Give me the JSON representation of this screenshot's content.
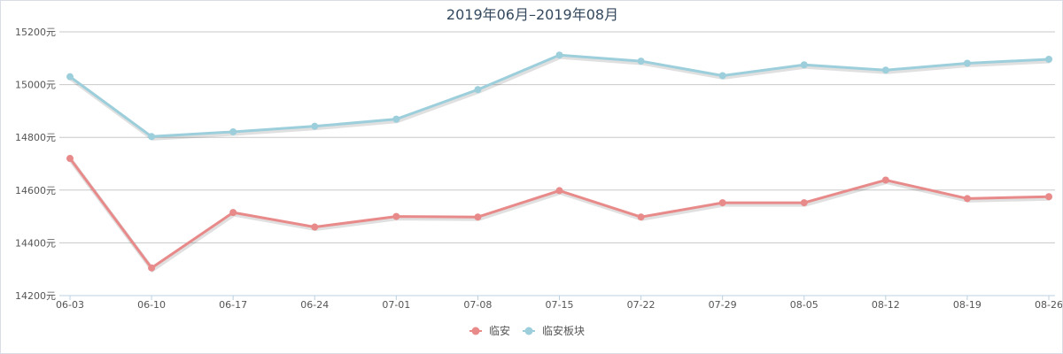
{
  "chart_data": {
    "type": "line",
    "title": "2019年06月–2019年08月",
    "xlabel": "",
    "ylabel": "",
    "ylim": [
      14200,
      15200
    ],
    "yticks": [
      14200,
      14400,
      14600,
      14800,
      15000,
      15200
    ],
    "yunit": "元",
    "grid": true,
    "legend_position": "bottom",
    "categories": [
      "06-03",
      "06-10",
      "06-17",
      "06-24",
      "07-01",
      "07-08",
      "07-15",
      "07-22",
      "07-29",
      "08-05",
      "08-12",
      "08-19",
      "08-26"
    ],
    "series": [
      {
        "name": "临安",
        "color": "#e88a8a",
        "values": [
          14720,
          14305,
          14515,
          14460,
          14500,
          14498,
          14598,
          14498,
          14552,
          14552,
          14638,
          14568,
          14575
        ]
      },
      {
        "name": "临安板块",
        "color": "#9ccfdb",
        "values": [
          15030,
          14803,
          14821,
          14842,
          14869,
          14981,
          15112,
          15089,
          15034,
          15075,
          15055,
          15081,
          15096
        ]
      }
    ]
  }
}
